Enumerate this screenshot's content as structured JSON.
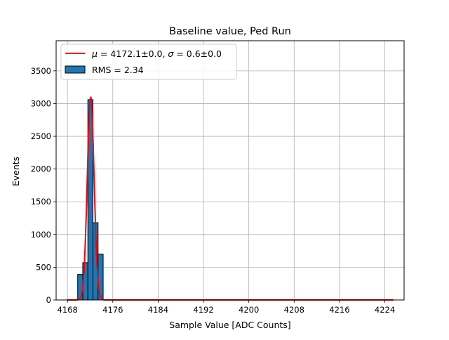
{
  "chart_data": {
    "type": "bar",
    "title": "Baseline value, Ped Run",
    "xlabel": "Sample Value [ADC Counts]",
    "ylabel": "Events",
    "xlim": [
      4166.0,
      4227.4
    ],
    "ylim": [
      0,
      3960
    ],
    "xticks": [
      4168,
      4176,
      4184,
      4192,
      4200,
      4208,
      4216,
      4224
    ],
    "yticks": [
      0,
      500,
      1000,
      1500,
      2000,
      2500,
      3000,
      3500
    ],
    "grid": true,
    "legend_position": "top-left",
    "histogram": {
      "name": "RMS = 2.34",
      "color": "#1f77b4",
      "edgecolor": "#000000",
      "bin_edges": [
        4169.8,
        4170.7,
        4171.6,
        4172.5,
        4173.4,
        4174.3
      ],
      "counts": [
        390,
        570,
        3060,
        1180,
        700
      ]
    },
    "fit": {
      "name_parts": [
        "μ",
        " = 4172.1±0.0, ",
        "σ",
        " = 0.6±0.0"
      ],
      "color": "#ff0000",
      "type": "gaussian",
      "mu": 4172.1,
      "sigma": 0.6,
      "amplitude": 3100,
      "x_range": [
        4167.9,
        4225.5
      ]
    }
  }
}
